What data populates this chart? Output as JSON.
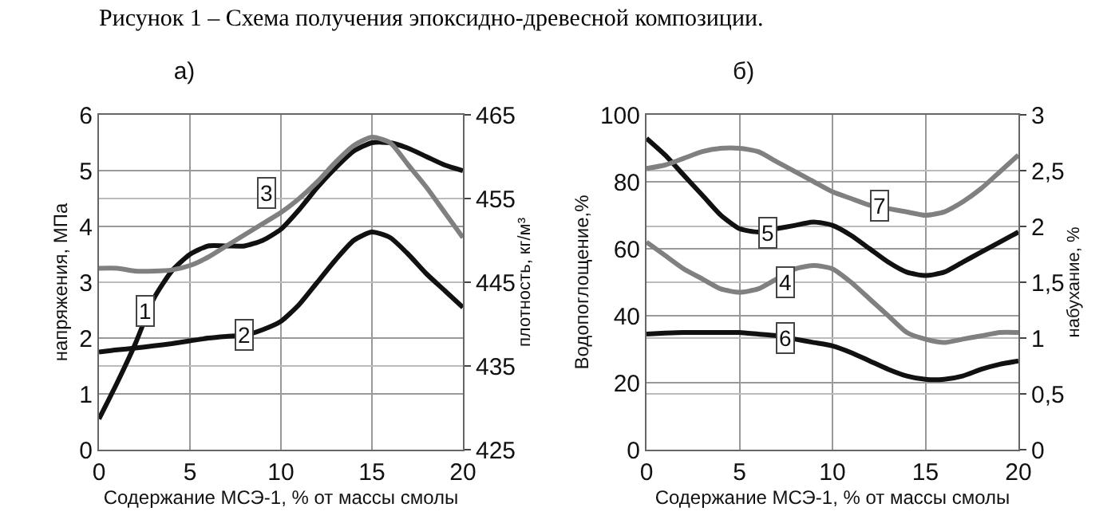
{
  "chart_data": [
    {
      "type": "line",
      "title": "Рисунок 1 – Схема получения эпоксидно-древесной композиции.",
      "subtitle": "а)",
      "xlabel": "Содержание МСЭ-1, % от массы смолы",
      "ylabel": "напряжения, МПа",
      "y2label": "плотность, кг/м³",
      "x": [
        0,
        1,
        2,
        3,
        4,
        5,
        6,
        7,
        8,
        9,
        10,
        11,
        12,
        13,
        14,
        15,
        16,
        17,
        18,
        19,
        20
      ],
      "series": [
        {
          "color": "#111111",
          "values": [
            0.55,
            1.2,
            1.9,
            2.7,
            3.2,
            3.5,
            3.65,
            3.65,
            3.65,
            3.75,
            3.95,
            4.3,
            4.7,
            5.05,
            5.35,
            5.5,
            5.5,
            5.4,
            5.25,
            5.1,
            5.0
          ]
        },
        {
          "color": "#111111",
          "values": [
            1.75,
            1.79,
            1.82,
            1.86,
            1.9,
            1.95,
            2.0,
            2.03,
            2.05,
            2.15,
            2.3,
            2.6,
            3.0,
            3.4,
            3.75,
            3.9,
            3.8,
            3.5,
            3.15,
            2.85,
            2.55
          ]
        },
        {
          "color": "#808080",
          "values": [
            3.25,
            3.25,
            3.2,
            3.2,
            3.22,
            3.3,
            3.45,
            3.65,
            3.85,
            4.05,
            4.25,
            4.5,
            4.8,
            5.15,
            5.45,
            5.6,
            5.5,
            5.1,
            4.7,
            4.25,
            3.8
          ]
        }
      ],
      "annotations": [
        {
          "text": "1",
          "x": 2.5,
          "y": 2.5
        },
        {
          "text": "2",
          "x": 8,
          "y": 2.05
        },
        {
          "text": "3",
          "x": 9.2,
          "y": 4.6
        }
      ],
      "xlim": [
        0,
        20
      ],
      "xticks": [
        0,
        5,
        10,
        15,
        20
      ],
      "ylim": [
        0,
        6
      ],
      "yticks": [
        0,
        1,
        2,
        3,
        4,
        5,
        6
      ],
      "y2lim": [
        425,
        465
      ],
      "y2ticks": [
        425,
        435,
        445,
        455,
        465
      ],
      "grid": true,
      "line_style": "solid",
      "marker": "none"
    },
    {
      "type": "line",
      "title": "б)",
      "xlabel": "Содержание МСЭ-1, % от массы смолы",
      "ylabel": "Водопоглощение,%",
      "y2label": "набухание, %",
      "x": [
        0,
        1,
        2,
        3,
        4,
        5,
        6,
        7,
        8,
        9,
        10,
        11,
        12,
        13,
        14,
        15,
        16,
        17,
        18,
        19,
        20
      ],
      "series": [
        {
          "color": "#808080",
          "values": [
            62,
            58,
            54,
            51,
            48,
            47,
            48,
            51,
            54,
            55,
            54,
            50,
            45,
            40,
            35,
            33,
            32,
            33,
            34,
            35,
            35
          ]
        },
        {
          "color": "#111111",
          "values": [
            93,
            88,
            82,
            76,
            70,
            66,
            65,
            66,
            67,
            68,
            67,
            64,
            60,
            56,
            53,
            52,
            53,
            56,
            59,
            62,
            65
          ]
        },
        {
          "color": "#111111",
          "values": [
            34.5,
            34.8,
            35,
            35,
            35,
            35,
            34.5,
            34,
            33,
            32,
            31,
            29,
            26.5,
            24,
            22,
            21,
            21,
            22,
            24,
            25.5,
            26.5
          ]
        },
        {
          "color": "#808080",
          "values": [
            84,
            85,
            87,
            89,
            90,
            90,
            89,
            86,
            83,
            80,
            77,
            75,
            73,
            72,
            71,
            70,
            71,
            74,
            78,
            83,
            88
          ]
        }
      ],
      "annotations": [
        {
          "text": "4",
          "x": 7.5,
          "y": 50
        },
        {
          "text": "5",
          "x": 6.5,
          "y": 65
        },
        {
          "text": "6",
          "x": 7.5,
          "y": 33.5
        },
        {
          "text": "7",
          "x": 12.5,
          "y": 73
        }
      ],
      "xlim": [
        0,
        20
      ],
      "xticks": [
        0,
        5,
        10,
        15,
        20
      ],
      "ylim": [
        0,
        100
      ],
      "yticks": [
        0,
        20,
        40,
        60,
        80,
        100
      ],
      "y2lim": [
        0,
        3
      ],
      "y2ticks": [
        0,
        {
          "value": 0.5,
          "label": "0,5"
        },
        1,
        {
          "value": 1.5,
          "label": "1,5"
        },
        2,
        {
          "value": 2.5,
          "label": "2,5"
        },
        3
      ],
      "grid": true,
      "line_style": "solid",
      "marker": "none"
    }
  ]
}
